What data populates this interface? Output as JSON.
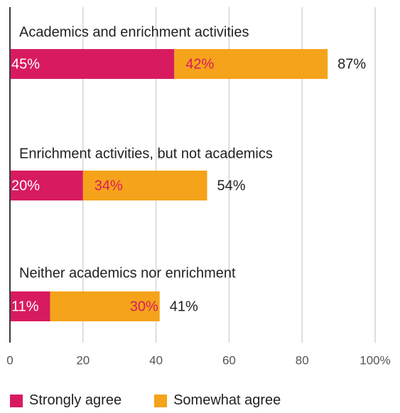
{
  "chart_data": {
    "type": "bar",
    "orientation": "horizontal",
    "stacked": true,
    "categories": [
      "Academics and enrichment activities",
      "Enrichment activities, but not academics",
      "Neither academics nor enrichment"
    ],
    "series": [
      {
        "name": "Strongly agree",
        "values": [
          45,
          20,
          11
        ],
        "labels": [
          "45%",
          "20%",
          "11%"
        ],
        "color": "#d81b60",
        "label_color": "#ffffff"
      },
      {
        "name": "Somewhat agree",
        "values": [
          42,
          34,
          30
        ],
        "labels": [
          "42%",
          "34%",
          "30%"
        ],
        "color": "#f5a31a",
        "label_color": "#d81b60"
      }
    ],
    "totals": [
      87,
      54,
      41
    ],
    "total_labels": [
      "87%",
      "54%",
      "41%"
    ],
    "xlim": [
      0,
      100
    ],
    "xticks": [
      "0",
      "20",
      "40",
      "60",
      "80",
      "100%"
    ],
    "grid": true,
    "legend_position": "bottom-left",
    "gridline_color": "#d4d4d4",
    "axis_color": "#3a3a3a",
    "text_color": "#231f20"
  }
}
